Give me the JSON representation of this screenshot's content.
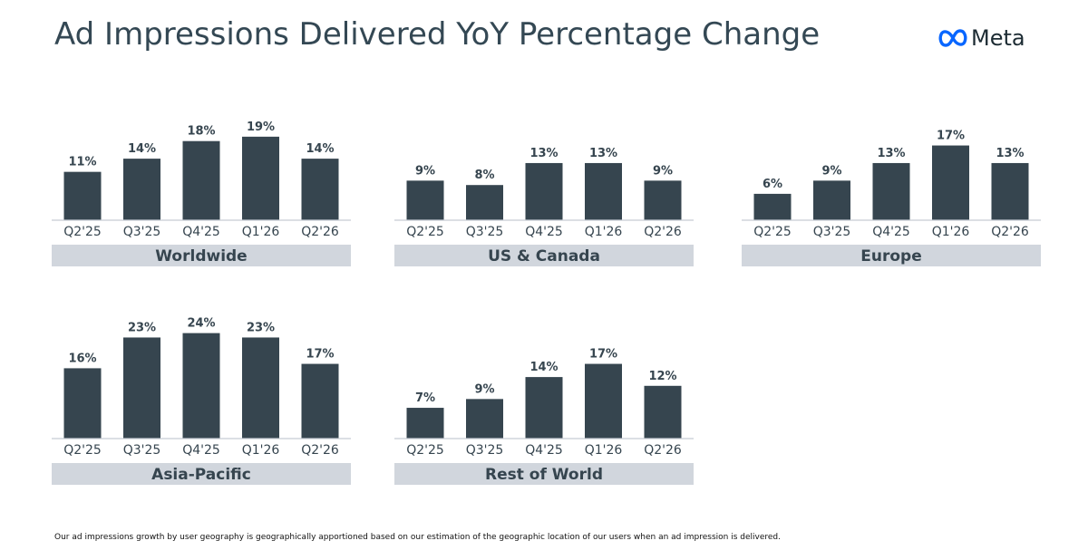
{
  "title": "Ad Impressions Delivered YoY Percentage Change",
  "logo": {
    "text": "Meta",
    "icon": "meta-infinity-icon",
    "color": "#0866ff"
  },
  "colors": {
    "bar": "#36454f",
    "band": "#d1d6dd",
    "title": "#344854"
  },
  "footnote": "Our ad impressions growth by user geography is geographically apportioned based on our estimation of the geographic location of our users when an ad impression is delivered.",
  "chart_data": [
    {
      "type": "bar",
      "title": "Worldwide",
      "categories": [
        "Q2'25",
        "Q3'25",
        "Q4'25",
        "Q1'26",
        "Q2'26"
      ],
      "values": [
        11,
        14,
        18,
        19,
        14
      ],
      "labels": [
        "11%",
        "14%",
        "18%",
        "19%",
        "14%"
      ],
      "unit": "%",
      "ylim": [
        0,
        25
      ]
    },
    {
      "type": "bar",
      "title": "US & Canada",
      "categories": [
        "Q2'25",
        "Q3'25",
        "Q4'25",
        "Q1'26",
        "Q2'26"
      ],
      "values": [
        9,
        8,
        13,
        13,
        9
      ],
      "labels": [
        "9%",
        "8%",
        "13%",
        "13%",
        "9%"
      ],
      "unit": "%",
      "ylim": [
        0,
        25
      ]
    },
    {
      "type": "bar",
      "title": "Europe",
      "categories": [
        "Q2'25",
        "Q3'25",
        "Q4'25",
        "Q1'26",
        "Q2'26"
      ],
      "values": [
        6,
        9,
        13,
        17,
        13
      ],
      "labels": [
        "6%",
        "9%",
        "13%",
        "17%",
        "13%"
      ],
      "unit": "%",
      "ylim": [
        0,
        25
      ]
    },
    {
      "type": "bar",
      "title": "Asia-Pacific",
      "categories": [
        "Q2'25",
        "Q3'25",
        "Q4'25",
        "Q1'26",
        "Q2'26"
      ],
      "values": [
        16,
        23,
        24,
        23,
        17
      ],
      "labels": [
        "16%",
        "23%",
        "24%",
        "23%",
        "17%"
      ],
      "unit": "%",
      "ylim": [
        0,
        25
      ]
    },
    {
      "type": "bar",
      "title": "Rest of World",
      "categories": [
        "Q2'25",
        "Q3'25",
        "Q4'25",
        "Q1'26",
        "Q2'26"
      ],
      "values": [
        7,
        9,
        14,
        17,
        12
      ],
      "labels": [
        "7%",
        "9%",
        "14%",
        "17%",
        "12%"
      ],
      "unit": "%",
      "ylim": [
        0,
        25
      ]
    }
  ]
}
